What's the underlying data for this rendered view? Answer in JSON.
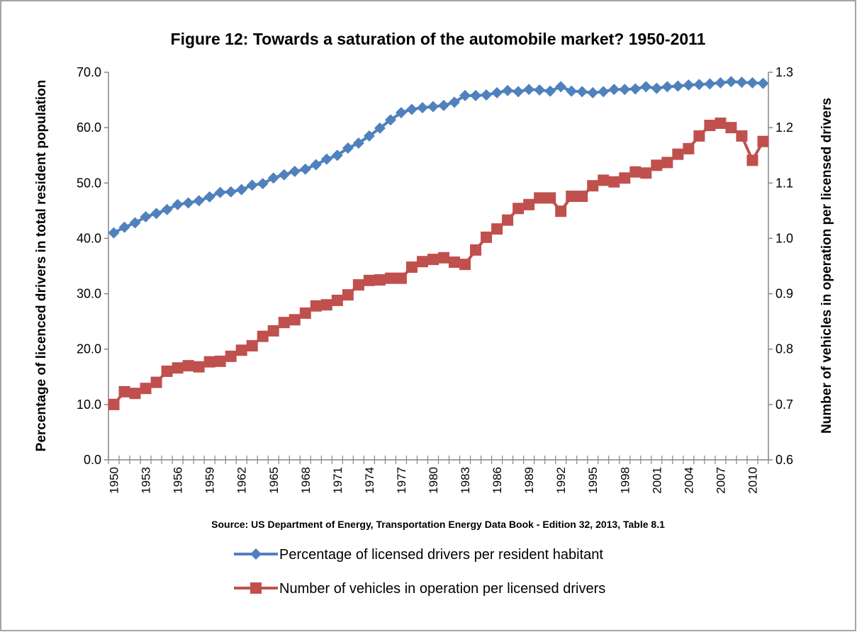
{
  "chart_data": {
    "type": "line",
    "title": "Figure 12: Towards a saturation of the automobile market? 1950-2011",
    "source": "Source: US Department of Energy, Transportation Energy Data Book - Edition 32, 2013, Table 8.1",
    "y_label": "Percentage of licenced drivers in total resident population",
    "y2_label": "Number of vehicles in operation per licensed drivers",
    "categories": [
      "1950",
      null,
      null,
      "1953",
      null,
      null,
      "1956",
      null,
      null,
      "1959",
      null,
      null,
      "1962",
      null,
      null,
      "1965",
      null,
      null,
      "1968",
      null,
      null,
      "1971",
      null,
      null,
      "1974",
      null,
      null,
      "1977",
      null,
      null,
      "1980",
      null,
      null,
      "1983",
      null,
      null,
      "1986",
      null,
      null,
      "1989",
      null,
      null,
      "1992",
      null,
      null,
      "1995",
      null,
      null,
      "1998",
      null,
      null,
      "2001",
      null,
      null,
      "2004",
      null,
      null,
      "2007",
      null,
      null,
      "2010",
      null
    ],
    "series": [
      {
        "name": "Percentage of licensed drivers per resident habitant",
        "color": "#4f81bd",
        "marker": "diamond",
        "axis": "y",
        "values": [
          41.0,
          42.0,
          42.8,
          43.9,
          44.5,
          45.2,
          46.1,
          46.4,
          46.8,
          47.5,
          48.3,
          48.4,
          48.8,
          49.6,
          49.9,
          50.9,
          51.5,
          52.1,
          52.5,
          53.3,
          54.3,
          55.0,
          56.3,
          57.2,
          58.5,
          59.9,
          61.4,
          62.7,
          63.3,
          63.6,
          63.8,
          64.0,
          64.6,
          65.8,
          65.8,
          65.9,
          66.3,
          66.7,
          66.5,
          66.9,
          66.8,
          66.6,
          67.4,
          66.6,
          66.5,
          66.3,
          66.5,
          66.9,
          66.9,
          67.0,
          67.4,
          67.1,
          67.4,
          67.5,
          67.7,
          67.8,
          67.9,
          68.1,
          68.3,
          68.2,
          68.1,
          68.0
        ]
      },
      {
        "name": "Number of vehicles in operation per licensed drivers",
        "color": "#c0504d",
        "marker": "square",
        "axis": "y2",
        "values": [
          0.7,
          0.723,
          0.72,
          0.729,
          0.74,
          0.76,
          0.766,
          0.77,
          0.768,
          0.777,
          0.778,
          0.787,
          0.798,
          0.806,
          0.823,
          0.833,
          0.848,
          0.853,
          0.865,
          0.878,
          0.88,
          0.888,
          0.898,
          0.916,
          0.924,
          0.925,
          0.928,
          0.928,
          0.948,
          0.958,
          0.962,
          0.965,
          0.957,
          0.953,
          0.979,
          1.002,
          1.017,
          1.033,
          1.054,
          1.061,
          1.073,
          1.073,
          1.049,
          1.076,
          1.076,
          1.095,
          1.105,
          1.102,
          1.109,
          1.12,
          1.118,
          1.132,
          1.137,
          1.152,
          1.162,
          1.185,
          1.204,
          1.208,
          1.2,
          1.185,
          1.141,
          1.175
        ]
      }
    ],
    "ylim": [
      0,
      70
    ],
    "yticks": [
      {
        "value": 0,
        "label": "0.0"
      },
      {
        "value": 10,
        "label": "10.0"
      },
      {
        "value": 20,
        "label": "20.0"
      },
      {
        "value": 30,
        "label": "30.0"
      },
      {
        "value": 40,
        "label": "40.0"
      },
      {
        "value": 50,
        "label": "50.0"
      },
      {
        "value": 60,
        "label": "60.0"
      },
      {
        "value": 70,
        "label": "70.0"
      }
    ],
    "y2lim": [
      0.6,
      1.3
    ],
    "y2ticks": [
      0.6,
      0.7,
      0.8,
      0.9,
      {
        "value": 1.0,
        "label": "1.0"
      },
      1.1,
      1.2,
      1.3
    ],
    "grid": false,
    "legend": "bottom"
  }
}
